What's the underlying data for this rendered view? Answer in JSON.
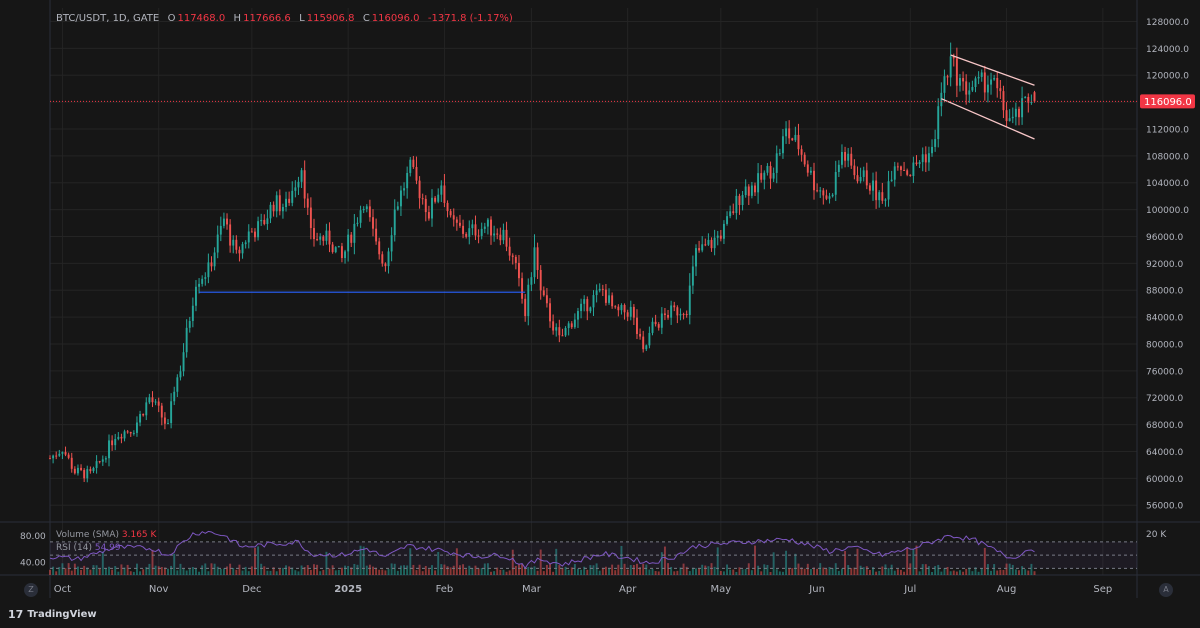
{
  "header": {
    "symbol": "BTC/USDT, 1D, GATE",
    "o_label": "O",
    "o_value": "117468.0",
    "h_label": "H",
    "h_value": "117666.6",
    "l_label": "L",
    "l_value": "115906.8",
    "c_label": "C",
    "c_value": "116096.0",
    "change": "-1371.8 (-1.17%)"
  },
  "indicators": {
    "volume_label": "Volume (SMA)",
    "volume_value": "3.165 K",
    "rsi_label": "RSI (14)",
    "rsi_value": "54.99"
  },
  "branding": {
    "logo_text": "TradingView",
    "logo_mark": "17"
  },
  "corner_buttons": {
    "left": "Z",
    "right": "A"
  },
  "colors": {
    "background": "#161616",
    "up": "#26a69a",
    "down": "#ef5350",
    "support_line": "#2962ff",
    "channel": "#f7c6c7",
    "rsi": "#7e57c2",
    "price_tag": "#f23645",
    "grid": "#242424"
  },
  "chart_data": {
    "type": "candlestick",
    "symbol": "BTC/USDT",
    "interval": "1D",
    "exchange": "GATE",
    "last_price": "116096.0",
    "y_ticks": [
      "56000.0",
      "60000.0",
      "64000.0",
      "68000.0",
      "72000.0",
      "76000.0",
      "80000.0",
      "84000.0",
      "88000.0",
      "92000.0",
      "96000.0",
      "100000.0",
      "104000.0",
      "108000.0",
      "112000.0",
      "116000.0",
      "120000.0",
      "124000.0",
      "128000.0"
    ],
    "y_tick_values": [
      56000,
      60000,
      64000,
      68000,
      72000,
      76000,
      80000,
      84000,
      88000,
      92000,
      96000,
      100000,
      104000,
      108000,
      112000,
      116000,
      120000,
      124000,
      128000
    ],
    "ylim": [
      53500,
      130000
    ],
    "x_ticks": [
      {
        "label": "Oct",
        "date": "2024-10-01"
      },
      {
        "label": "Nov",
        "date": "2024-11-01"
      },
      {
        "label": "Dec",
        "date": "2024-12-01"
      },
      {
        "label": "2025",
        "date": "2025-01-01"
      },
      {
        "label": "Feb",
        "date": "2025-02-01"
      },
      {
        "label": "Mar",
        "date": "2025-03-01"
      },
      {
        "label": "Apr",
        "date": "2025-04-01"
      },
      {
        "label": "May",
        "date": "2025-05-01"
      },
      {
        "label": "Jun",
        "date": "2025-06-01"
      },
      {
        "label": "Jul",
        "date": "2025-07-01"
      },
      {
        "label": "Aug",
        "date": "2025-08-01"
      },
      {
        "label": "Sep",
        "date": "2025-09-01"
      }
    ],
    "xlim": [
      "2024-09-27",
      "2025-09-12"
    ],
    "close_path": [
      [
        "2024-09-27",
        63000
      ],
      [
        "2024-10-01",
        64500
      ],
      [
        "2024-10-05",
        61000
      ],
      [
        "2024-10-10",
        60500
      ],
      [
        "2024-10-14",
        63000
      ],
      [
        "2024-10-18",
        66500
      ],
      [
        "2024-10-24",
        67500
      ],
      [
        "2024-10-29",
        72000
      ],
      [
        "2024-11-01",
        70000
      ],
      [
        "2024-11-04",
        67500
      ],
      [
        "2024-11-06",
        73500
      ],
      [
        "2024-11-08",
        76500
      ],
      [
        "2024-11-11",
        84000
      ],
      [
        "2024-11-13",
        89500
      ],
      [
        "2024-11-17",
        91000
      ],
      [
        "2024-11-22",
        98500
      ],
      [
        "2024-11-26",
        93000
      ],
      [
        "2024-11-30",
        96500
      ],
      [
        "2024-12-04",
        97500
      ],
      [
        "2024-12-08",
        101000
      ],
      [
        "2024-12-12",
        100500
      ],
      [
        "2024-12-17",
        106500
      ],
      [
        "2024-12-20",
        96000
      ],
      [
        "2024-12-26",
        95500
      ],
      [
        "2024-12-30",
        92500
      ],
      [
        "2025-01-06",
        101500
      ],
      [
        "2025-01-10",
        94500
      ],
      [
        "2025-01-13",
        92000
      ],
      [
        "2025-01-16",
        100000
      ],
      [
        "2025-01-21",
        106000
      ],
      [
        "2025-01-27",
        99500
      ],
      [
        "2025-01-31",
        104000
      ],
      [
        "2025-02-03",
        98000
      ],
      [
        "2025-02-08",
        96500
      ],
      [
        "2025-02-14",
        97500
      ],
      [
        "2025-02-20",
        96500
      ],
      [
        "2025-02-24",
        91000
      ],
      [
        "2025-02-27",
        84500
      ],
      [
        "2025-03-02",
        94000
      ],
      [
        "2025-03-04",
        87500
      ],
      [
        "2025-03-10",
        80500
      ],
      [
        "2025-03-14",
        83500
      ],
      [
        "2025-03-19",
        86000
      ],
      [
        "2025-03-24",
        88000
      ],
      [
        "2025-03-28",
        84500
      ],
      [
        "2025-04-02",
        85000
      ],
      [
        "2025-04-06",
        78500
      ],
      [
        "2025-04-09",
        82500
      ],
      [
        "2025-04-14",
        84500
      ],
      [
        "2025-04-20",
        85500
      ],
      [
        "2025-04-23",
        93500
      ],
      [
        "2025-04-28",
        95000
      ],
      [
        "2025-05-02",
        97000
      ],
      [
        "2025-05-08",
        103000
      ],
      [
        "2025-05-12",
        103500
      ],
      [
        "2025-05-18",
        106500
      ],
      [
        "2025-05-22",
        111500
      ],
      [
        "2025-05-26",
        109500
      ],
      [
        "2025-05-31",
        104000
      ],
      [
        "2025-06-05",
        101500
      ],
      [
        "2025-06-09",
        108500
      ],
      [
        "2025-06-13",
        105500
      ],
      [
        "2025-06-17",
        104500
      ],
      [
        "2025-06-22",
        101000
      ],
      [
        "2025-06-26",
        107500
      ],
      [
        "2025-07-01",
        105500
      ],
      [
        "2025-07-05",
        108000
      ],
      [
        "2025-07-08",
        108500
      ],
      [
        "2025-07-11",
        117500
      ],
      [
        "2025-07-14",
        122000
      ],
      [
        "2025-07-18",
        118000
      ],
      [
        "2025-07-23",
        118500
      ],
      [
        "2025-07-27",
        119500
      ],
      [
        "2025-08-01",
        114000
      ],
      [
        "2025-08-03",
        113000
      ],
      [
        "2025-08-06",
        115000
      ],
      [
        "2025-08-09",
        117000
      ],
      [
        "2025-08-10",
        116096
      ]
    ],
    "support_line": {
      "from": [
        "2024-11-14",
        87700
      ],
      "to": [
        "2025-02-27",
        87700
      ]
    },
    "channel_upper": {
      "from": [
        "2025-07-14",
        123000
      ],
      "to": [
        "2025-08-10",
        118500
      ]
    },
    "channel_lower": {
      "from": [
        "2025-07-11",
        116500
      ],
      "to": [
        "2025-08-10",
        110500
      ]
    },
    "rsi": {
      "name": "RSI (14)",
      "ylim": [
        20,
        100
      ],
      "y_ticks": [
        "80.00",
        "40.00"
      ],
      "y_tick_values": [
        80,
        40
      ],
      "upper_band": 70,
      "middle_band": 50,
      "lower_band": 30,
      "path": [
        [
          "2024-09-27",
          48
        ],
        [
          "2024-10-06",
          44
        ],
        [
          "2024-10-18",
          62
        ],
        [
          "2024-10-30",
          60
        ],
        [
          "2024-11-04",
          50
        ],
        [
          "2024-11-12",
          82
        ],
        [
          "2024-11-16",
          86
        ],
        [
          "2024-11-22",
          80
        ],
        [
          "2024-11-28",
          62
        ],
        [
          "2024-12-06",
          66
        ],
        [
          "2024-12-16",
          70
        ],
        [
          "2024-12-20",
          52
        ],
        [
          "2024-12-30",
          50
        ],
        [
          "2025-01-07",
          60
        ],
        [
          "2025-01-13",
          46
        ],
        [
          "2025-01-20",
          64
        ],
        [
          "2025-01-30",
          58
        ],
        [
          "2025-02-10",
          48
        ],
        [
          "2025-02-20",
          50
        ],
        [
          "2025-02-27",
          34
        ],
        [
          "2025-03-04",
          44
        ],
        [
          "2025-03-11",
          36
        ],
        [
          "2025-03-24",
          52
        ],
        [
          "2025-04-01",
          46
        ],
        [
          "2025-04-08",
          38
        ],
        [
          "2025-04-16",
          48
        ],
        [
          "2025-04-23",
          64
        ],
        [
          "2025-05-09",
          70
        ],
        [
          "2025-05-23",
          74
        ],
        [
          "2025-06-05",
          56
        ],
        [
          "2025-06-12",
          62
        ],
        [
          "2025-06-22",
          50
        ],
        [
          "2025-07-03",
          62
        ],
        [
          "2025-07-14",
          80
        ],
        [
          "2025-07-22",
          72
        ],
        [
          "2025-08-02",
          46
        ],
        [
          "2025-08-06",
          52
        ],
        [
          "2025-08-08",
          60
        ],
        [
          "2025-08-10",
          54.99
        ]
      ]
    },
    "volume": {
      "name": "Volume (SMA)",
      "last_value": "3.165 K",
      "y_ticks": [
        "20 K"
      ],
      "y_tick_values": [
        20000
      ]
    }
  }
}
